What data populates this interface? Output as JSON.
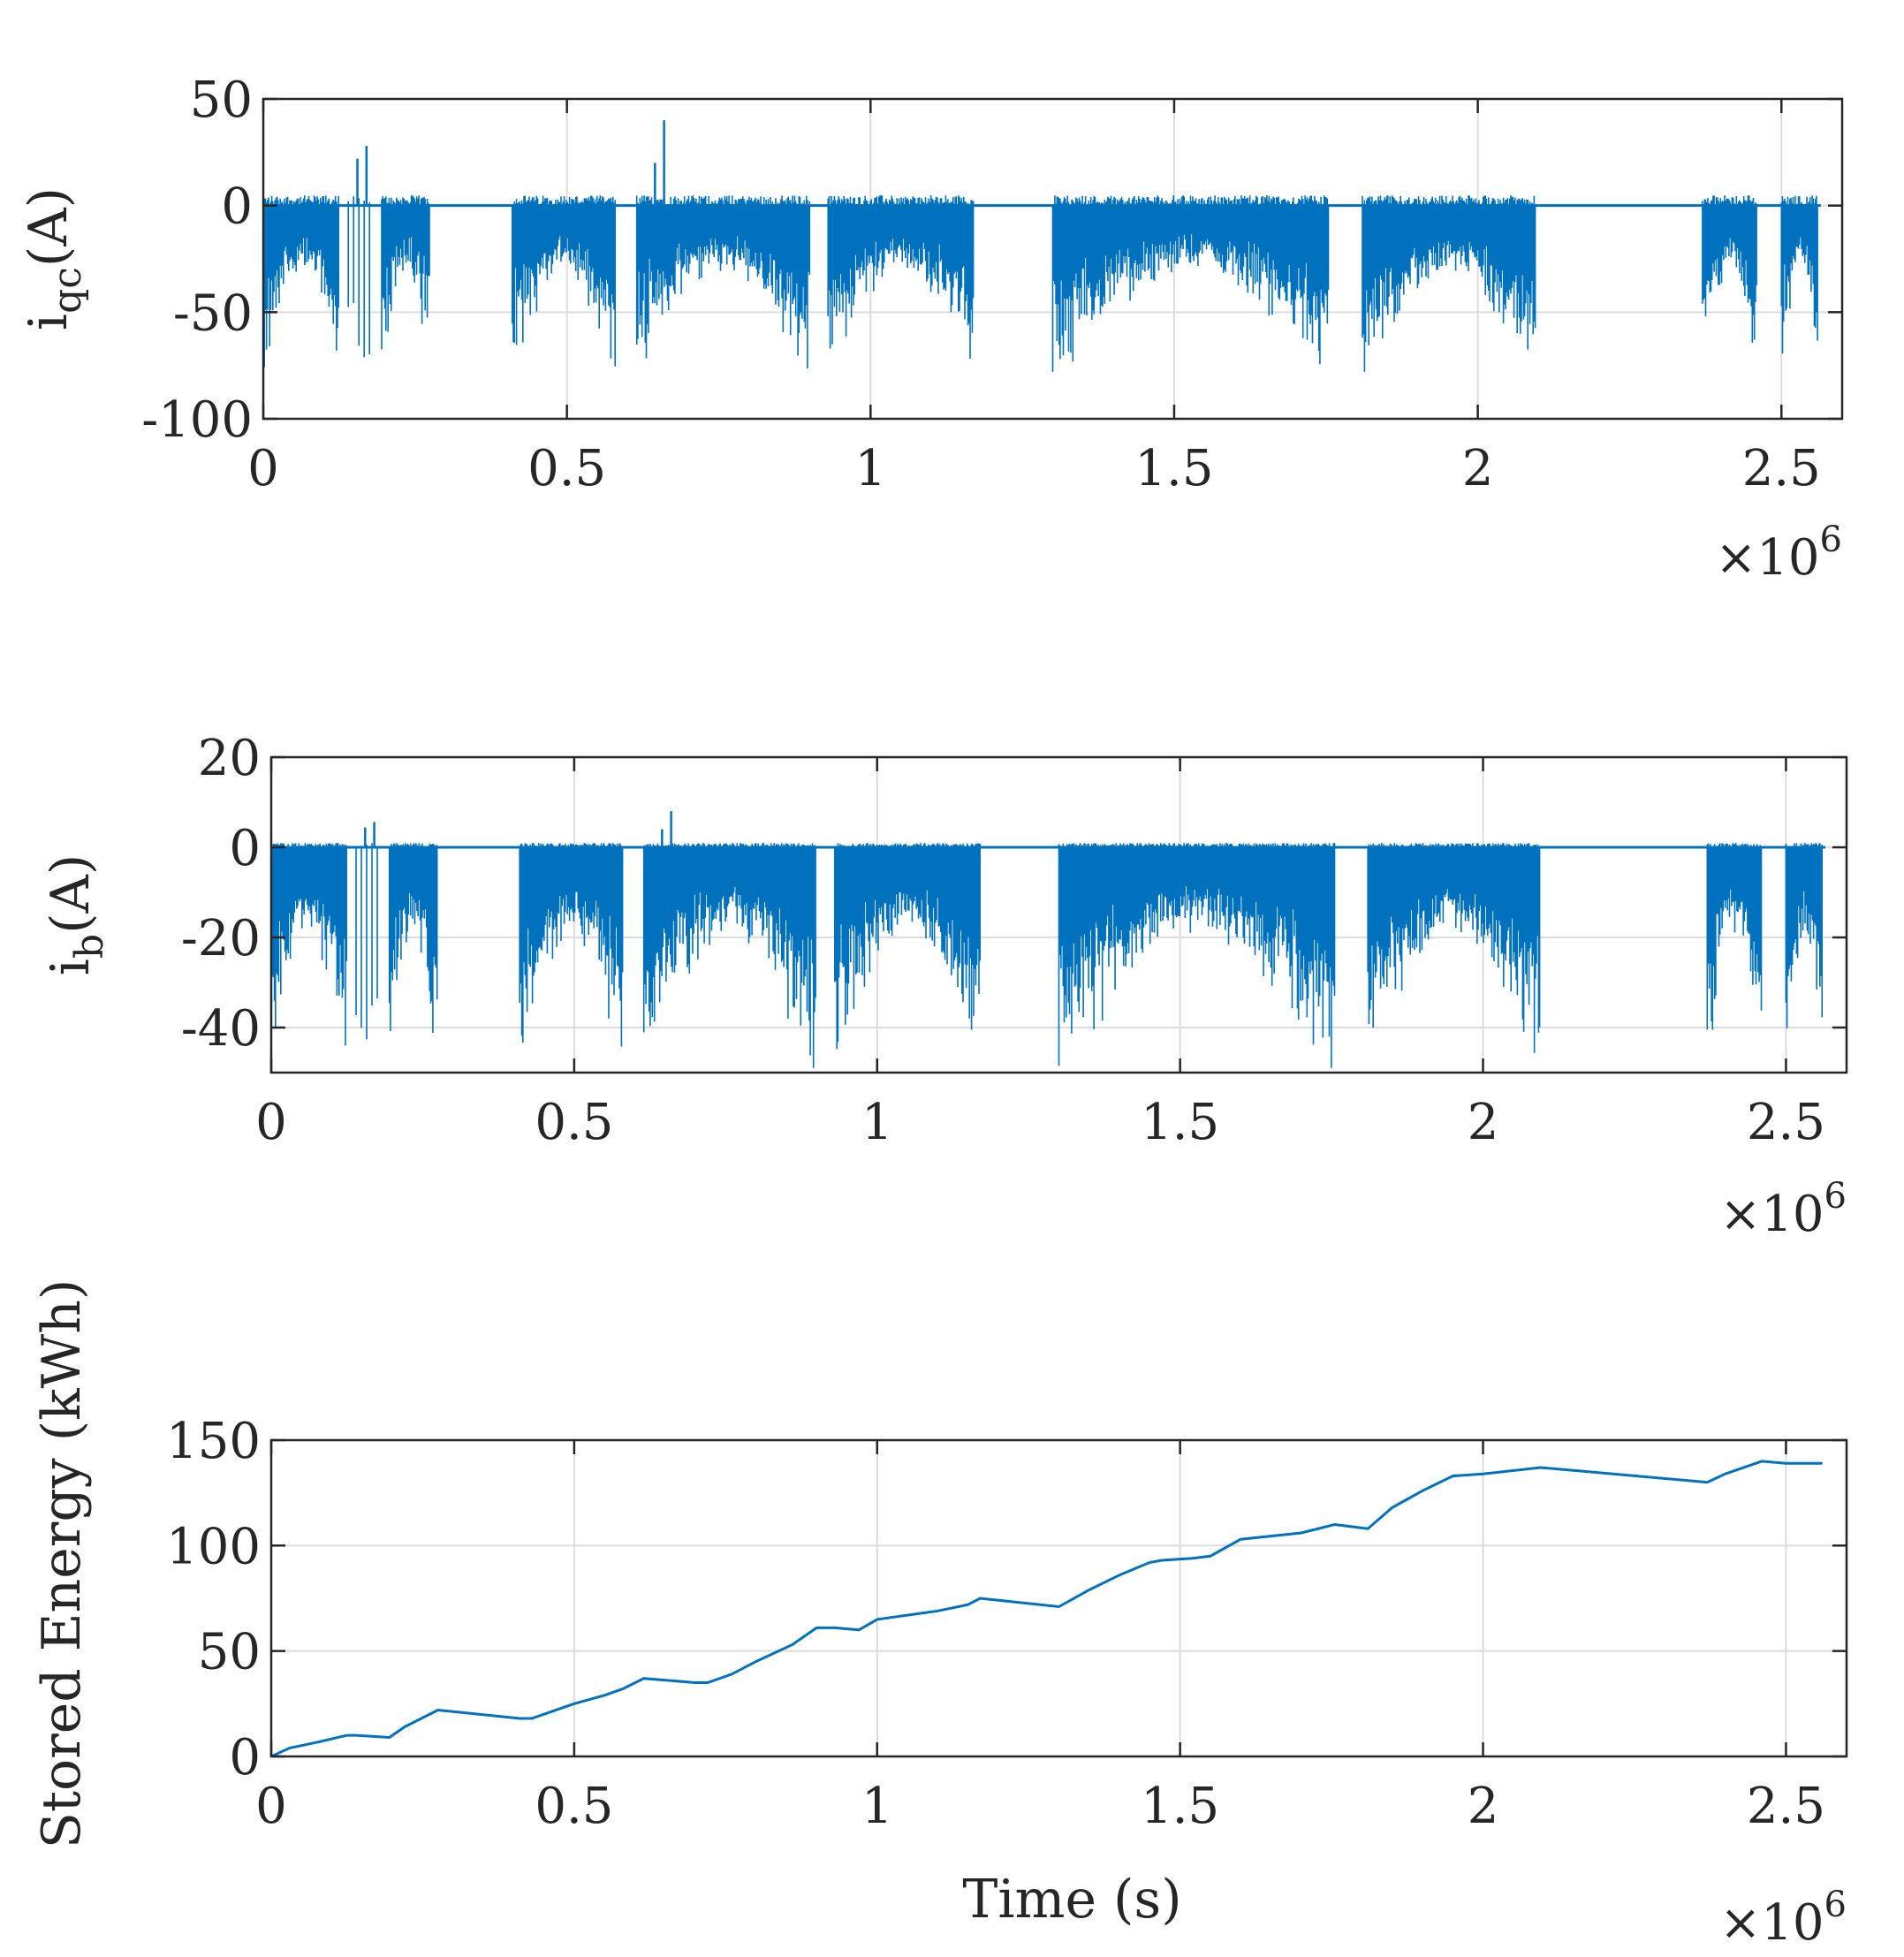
{
  "line_color": "#0072BD",
  "chart_data": [
    {
      "type": "line",
      "title": "",
      "ylabel_main": "i",
      "ylabel_sub": "qc",
      "ylabel_unit": "(A)",
      "xlabel": "",
      "xlim": [
        0,
        2.6
      ],
      "ylim": [
        -100,
        50
      ],
      "x_ticks": [
        0,
        0.5,
        1,
        1.5,
        2,
        2.5
      ],
      "x_tick_labels": [
        "0",
        "0.5",
        "1",
        "1.5",
        "2",
        "2.5"
      ],
      "y_ticks": [
        50,
        0,
        -50,
        -100
      ],
      "y_tick_labels": [
        "50",
        "0",
        "-50",
        "-100"
      ],
      "x_multiplier": "×10",
      "x_multiplier_exp": "6",
      "grid": true,
      "baseline": 0,
      "active_intervals": [
        [
          0.0,
          0.125
        ],
        [
          0.14,
          0.18
        ],
        [
          0.195,
          0.275
        ],
        [
          0.41,
          0.58
        ],
        [
          0.615,
          0.9
        ],
        [
          0.93,
          1.17
        ],
        [
          1.3,
          1.755
        ],
        [
          1.81,
          2.095
        ],
        [
          2.37,
          2.46
        ],
        [
          2.5,
          2.56
        ]
      ],
      "peak_min": -78,
      "peak_max": 40
    },
    {
      "type": "line",
      "title": "",
      "ylabel_main": "i",
      "ylabel_sub": "b",
      "ylabel_unit": "(A)",
      "xlabel": "",
      "xlim": [
        0,
        2.6
      ],
      "ylim": [
        -50,
        20
      ],
      "x_ticks": [
        0,
        0.5,
        1,
        1.5,
        2,
        2.5
      ],
      "x_tick_labels": [
        "0",
        "0.5",
        "1",
        "1.5",
        "2",
        "2.5"
      ],
      "y_ticks": [
        20,
        0,
        -20,
        -40
      ],
      "y_tick_labels": [
        "20",
        "0",
        "-20",
        "-40"
      ],
      "x_multiplier": "×10",
      "x_multiplier_exp": "6",
      "grid": true,
      "baseline": 0,
      "active_intervals": [
        [
          0.0,
          0.125
        ],
        [
          0.14,
          0.18
        ],
        [
          0.195,
          0.275
        ],
        [
          0.41,
          0.58
        ],
        [
          0.615,
          0.9
        ],
        [
          0.93,
          1.17
        ],
        [
          1.3,
          1.755
        ],
        [
          1.81,
          2.095
        ],
        [
          2.37,
          2.46
        ],
        [
          2.5,
          2.56
        ]
      ],
      "peak_min": -49,
      "peak_max": 8
    },
    {
      "type": "line",
      "title": "",
      "ylabel": "Stored Energy (kWh)",
      "xlabel": "Time (s)",
      "xlim": [
        0,
        2.6
      ],
      "ylim": [
        0,
        150
      ],
      "x_ticks": [
        0,
        0.5,
        1,
        1.5,
        2,
        2.5
      ],
      "x_tick_labels": [
        "0",
        "0.5",
        "1",
        "1.5",
        "2",
        "2.5"
      ],
      "y_ticks": [
        150,
        100,
        50,
        0
      ],
      "y_tick_labels": [
        "150",
        "100",
        "50",
        "0"
      ],
      "x_multiplier": "×10",
      "x_multiplier_exp": "6",
      "grid": true,
      "x": [
        0,
        0.03,
        0.08,
        0.125,
        0.14,
        0.195,
        0.22,
        0.275,
        0.41,
        0.43,
        0.5,
        0.55,
        0.58,
        0.615,
        0.7,
        0.72,
        0.76,
        0.8,
        0.86,
        0.9,
        0.93,
        0.97,
        1.0,
        1.05,
        1.1,
        1.15,
        1.17,
        1.3,
        1.35,
        1.4,
        1.45,
        1.47,
        1.52,
        1.55,
        1.6,
        1.7,
        1.755,
        1.81,
        1.85,
        1.9,
        1.95,
        2.0,
        2.095,
        2.37,
        2.4,
        2.46,
        2.5,
        2.56
      ],
      "y": [
        0,
        4,
        7,
        10,
        10,
        9,
        14,
        22,
        18,
        18,
        25,
        29,
        32,
        37,
        35,
        35,
        39,
        45,
        53,
        61,
        61,
        60,
        65,
        67,
        69,
        72,
        75,
        71,
        79,
        86,
        92,
        93,
        94,
        95,
        103,
        106,
        110,
        108,
        118,
        126,
        133,
        134,
        137,
        130,
        134,
        140,
        139,
        139
      ]
    }
  ]
}
